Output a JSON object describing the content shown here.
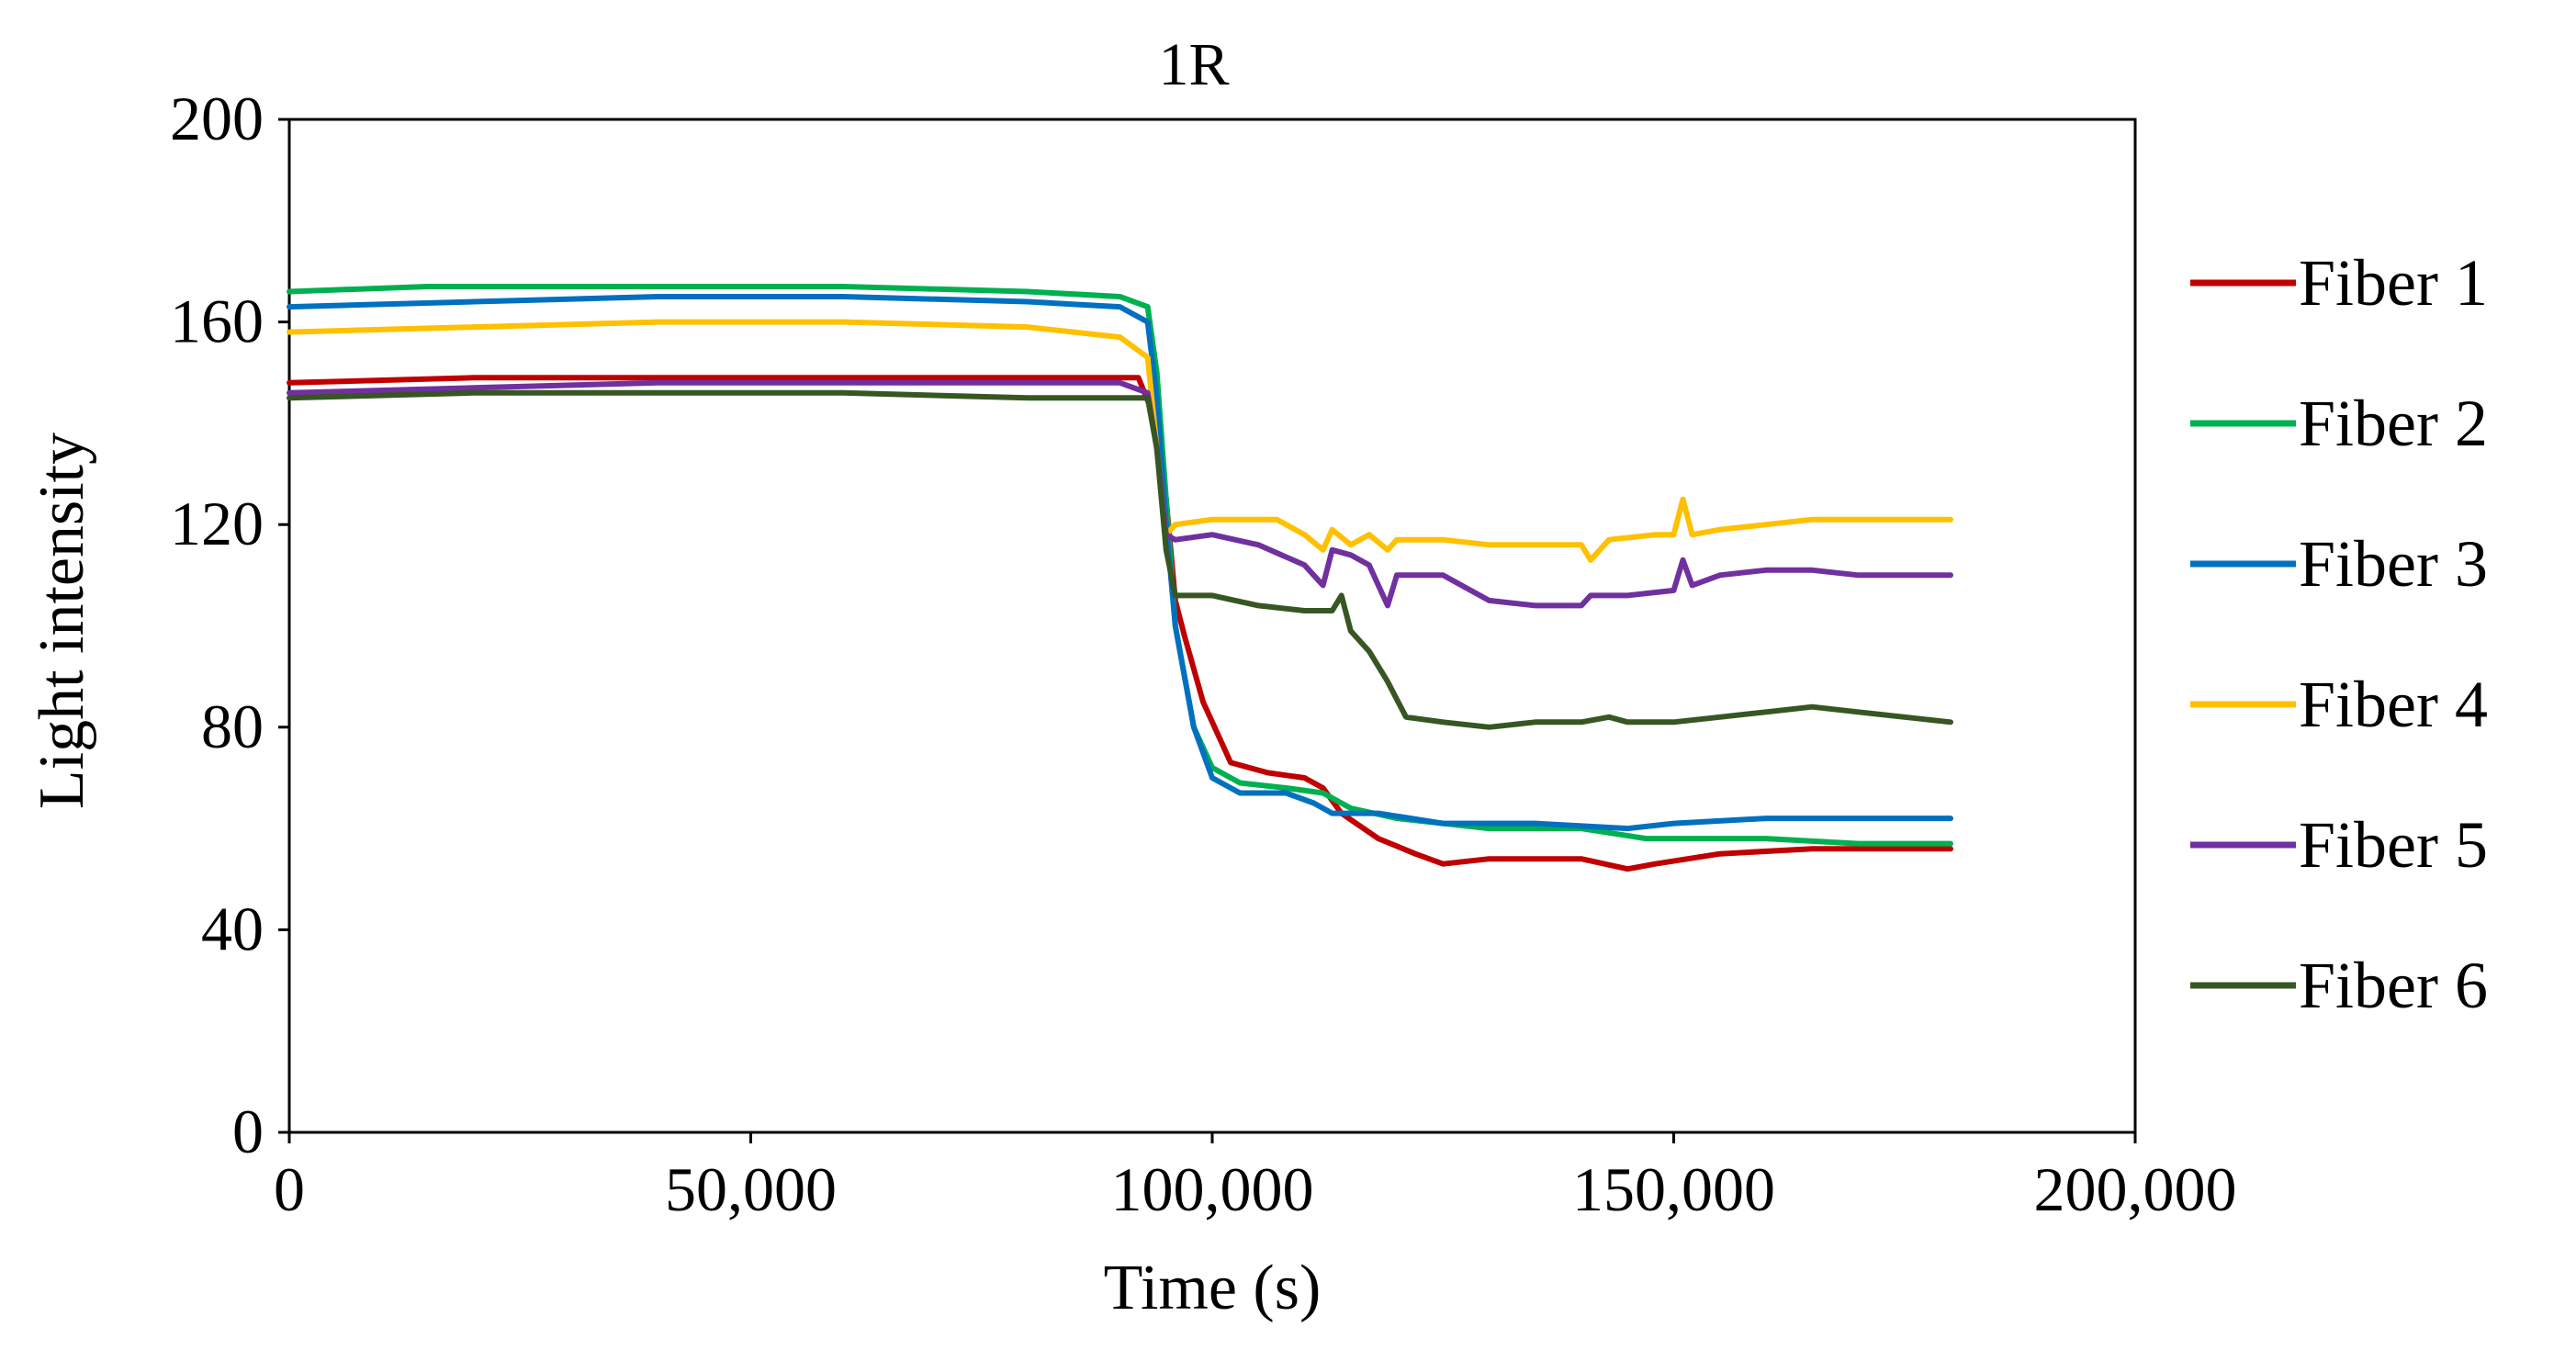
{
  "chart_data": {
    "type": "line",
    "title": "1R",
    "xlabel": "Time (s)",
    "ylabel": "Light intensity",
    "xlim": [
      0,
      200000
    ],
    "ylim": [
      0,
      200
    ],
    "xticks": [
      0,
      50000,
      100000,
      150000,
      200000
    ],
    "xtick_labels": [
      "0",
      "50,000",
      "100,000",
      "150,000",
      "200,000"
    ],
    "yticks": [
      0,
      40,
      80,
      120,
      160,
      200
    ],
    "ytick_labels": [
      "0",
      "40",
      "80",
      "120",
      "160",
      "200"
    ],
    "grid": false,
    "legend_position": "right",
    "series": [
      {
        "name": "Fiber 1",
        "color": "#C00000",
        "points": [
          [
            0,
            148
          ],
          [
            20000,
            149
          ],
          [
            50000,
            149
          ],
          [
            70000,
            149
          ],
          [
            92000,
            149
          ],
          [
            94000,
            140
          ],
          [
            95000,
            125
          ],
          [
            96000,
            105
          ],
          [
            97000,
            98
          ],
          [
            99000,
            85
          ],
          [
            102000,
            73
          ],
          [
            106000,
            71
          ],
          [
            110000,
            70
          ],
          [
            112000,
            68
          ],
          [
            114000,
            63
          ],
          [
            118000,
            58
          ],
          [
            122000,
            55
          ],
          [
            125000,
            53
          ],
          [
            130000,
            54
          ],
          [
            140000,
            54
          ],
          [
            145000,
            52
          ],
          [
            148000,
            53
          ],
          [
            155000,
            55
          ],
          [
            165000,
            56
          ],
          [
            180000,
            56
          ]
        ]
      },
      {
        "name": "Fiber 2",
        "color": "#00B050",
        "points": [
          [
            0,
            166
          ],
          [
            15000,
            167
          ],
          [
            40000,
            167
          ],
          [
            60000,
            167
          ],
          [
            80000,
            166
          ],
          [
            90000,
            165
          ],
          [
            93000,
            163
          ],
          [
            94000,
            150
          ],
          [
            95000,
            125
          ],
          [
            96000,
            100
          ],
          [
            98000,
            80
          ],
          [
            100000,
            72
          ],
          [
            103000,
            69
          ],
          [
            108000,
            68
          ],
          [
            112000,
            67
          ],
          [
            115000,
            64
          ],
          [
            120000,
            62
          ],
          [
            130000,
            60
          ],
          [
            140000,
            60
          ],
          [
            147000,
            58
          ],
          [
            152000,
            58
          ],
          [
            160000,
            58
          ],
          [
            170000,
            57
          ],
          [
            180000,
            57
          ]
        ]
      },
      {
        "name": "Fiber 3",
        "color": "#0070C0",
        "points": [
          [
            0,
            163
          ],
          [
            20000,
            164
          ],
          [
            40000,
            165
          ],
          [
            60000,
            165
          ],
          [
            80000,
            164
          ],
          [
            90000,
            163
          ],
          [
            93000,
            160
          ],
          [
            94000,
            145
          ],
          [
            95000,
            120
          ],
          [
            96000,
            100
          ],
          [
            98000,
            80
          ],
          [
            100000,
            70
          ],
          [
            103000,
            67
          ],
          [
            108000,
            67
          ],
          [
            111000,
            65
          ],
          [
            113000,
            63
          ],
          [
            118000,
            63
          ],
          [
            125000,
            61
          ],
          [
            135000,
            61
          ],
          [
            145000,
            60
          ],
          [
            150000,
            61
          ],
          [
            160000,
            62
          ],
          [
            170000,
            62
          ],
          [
            180000,
            62
          ]
        ]
      },
      {
        "name": "Fiber 4",
        "color": "#FFC000",
        "points": [
          [
            0,
            158
          ],
          [
            20000,
            159
          ],
          [
            40000,
            160
          ],
          [
            60000,
            160
          ],
          [
            80000,
            159
          ],
          [
            90000,
            157
          ],
          [
            93000,
            153
          ],
          [
            94000,
            135
          ],
          [
            95000,
            118
          ],
          [
            96000,
            120
          ],
          [
            100000,
            121
          ],
          [
            107000,
            121
          ],
          [
            110000,
            118
          ],
          [
            112000,
            115
          ],
          [
            113000,
            119
          ],
          [
            115000,
            116
          ],
          [
            117000,
            118
          ],
          [
            119000,
            115
          ],
          [
            120000,
            117
          ],
          [
            125000,
            117
          ],
          [
            130000,
            116
          ],
          [
            140000,
            116
          ],
          [
            141000,
            113
          ],
          [
            143000,
            117
          ],
          [
            148000,
            118
          ],
          [
            150000,
            118
          ],
          [
            151000,
            125
          ],
          [
            152000,
            118
          ],
          [
            155000,
            119
          ],
          [
            160000,
            120
          ],
          [
            165000,
            121
          ],
          [
            180000,
            121
          ]
        ]
      },
      {
        "name": "Fiber 5",
        "color": "#7030A0",
        "points": [
          [
            0,
            146
          ],
          [
            20000,
            147
          ],
          [
            40000,
            148
          ],
          [
            60000,
            148
          ],
          [
            80000,
            148
          ],
          [
            90000,
            148
          ],
          [
            93000,
            146
          ],
          [
            94000,
            135
          ],
          [
            95000,
            118
          ],
          [
            96000,
            117
          ],
          [
            100000,
            118
          ],
          [
            105000,
            116
          ],
          [
            110000,
            112
          ],
          [
            112000,
            108
          ],
          [
            113000,
            115
          ],
          [
            115000,
            114
          ],
          [
            117000,
            112
          ],
          [
            119000,
            104
          ],
          [
            120000,
            110
          ],
          [
            125000,
            110
          ],
          [
            130000,
            105
          ],
          [
            135000,
            104
          ],
          [
            140000,
            104
          ],
          [
            141000,
            106
          ],
          [
            145000,
            106
          ],
          [
            150000,
            107
          ],
          [
            151000,
            113
          ],
          [
            152000,
            108
          ],
          [
            155000,
            110
          ],
          [
            160000,
            111
          ],
          [
            165000,
            111
          ],
          [
            170000,
            110
          ],
          [
            180000,
            110
          ]
        ]
      },
      {
        "name": "Fiber 6",
        "color": "#375623",
        "points": [
          [
            0,
            145
          ],
          [
            20000,
            146
          ],
          [
            40000,
            146
          ],
          [
            60000,
            146
          ],
          [
            80000,
            145
          ],
          [
            90000,
            145
          ],
          [
            93000,
            145
          ],
          [
            94000,
            135
          ],
          [
            95000,
            115
          ],
          [
            96000,
            106
          ],
          [
            100000,
            106
          ],
          [
            105000,
            104
          ],
          [
            110000,
            103
          ],
          [
            113000,
            103
          ],
          [
            114000,
            106
          ],
          [
            115000,
            99
          ],
          [
            117000,
            95
          ],
          [
            119000,
            89
          ],
          [
            121000,
            82
          ],
          [
            125000,
            81
          ],
          [
            130000,
            80
          ],
          [
            135000,
            81
          ],
          [
            140000,
            81
          ],
          [
            143000,
            82
          ],
          [
            145000,
            81
          ],
          [
            150000,
            81
          ],
          [
            155000,
            82
          ],
          [
            160000,
            83
          ],
          [
            165000,
            84
          ],
          [
            170000,
            83
          ],
          [
            175000,
            82
          ],
          [
            180000,
            81
          ]
        ]
      }
    ]
  }
}
